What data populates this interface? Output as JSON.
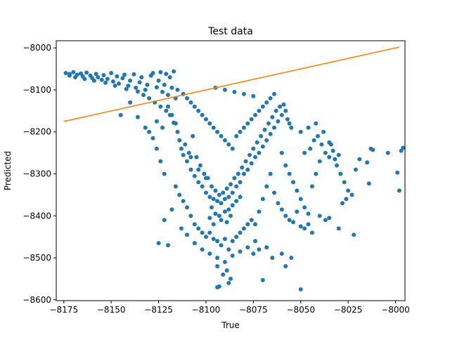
{
  "chart_data": {
    "type": "scatter",
    "title": "Test data",
    "xlabel": "True",
    "ylabel": "Predicted",
    "xlim": [
      -8179,
      -7995
    ],
    "ylim": [
      -8602,
      -7983
    ],
    "xticks": [
      -8175,
      -8150,
      -8125,
      -8100,
      -8075,
      -8050,
      -8025,
      -8000
    ],
    "yticks": [
      -8000,
      -8100,
      -8200,
      -8300,
      -8400,
      -8500,
      -8600
    ],
    "xtick_labels": [
      "−8175",
      "−8150",
      "−8125",
      "−8100",
      "−8075",
      "−8050",
      "−8025",
      "−8000"
    ],
    "ytick_labels": [
      "−8000",
      "−8100",
      "−8200",
      "−8300",
      "−8400",
      "−8500",
      "−8600"
    ],
    "grid": false,
    "series": [
      {
        "kind": "scatter",
        "color": "#1f77b4",
        "points": [
          [
            -8174,
            -8060
          ],
          [
            -8172,
            -8062
          ],
          [
            -8170,
            -8058
          ],
          [
            -8168,
            -8064
          ],
          [
            -8166,
            -8061
          ],
          [
            -8165,
            -8068
          ],
          [
            -8163,
            -8059
          ],
          [
            -8161,
            -8066
          ],
          [
            -8160,
            -8072
          ],
          [
            -8158,
            -8062
          ],
          [
            -8157,
            -8070
          ],
          [
            -8155,
            -8076
          ],
          [
            -8154,
            -8065
          ],
          [
            -8152,
            -8074
          ],
          [
            -8150,
            -8060
          ],
          [
            -8149,
            -8080
          ],
          [
            -8147,
            -8068
          ],
          [
            -8146,
            -8085
          ],
          [
            -8144,
            -8072
          ],
          [
            -8143,
            -8064
          ],
          [
            -8141,
            -8090
          ],
          [
            -8140,
            -8078
          ],
          [
            -8138,
            -8063
          ],
          [
            -8137,
            -8095
          ],
          [
            -8135,
            -8082
          ],
          [
            -8134,
            -8070
          ],
          [
            -8132,
            -8100
          ],
          [
            -8131,
            -8088
          ],
          [
            -8129,
            -8066
          ],
          [
            -8128,
            -8060
          ],
          [
            -8126,
            -8094
          ],
          [
            -8125,
            -8078
          ],
          [
            -8124,
            -8058
          ],
          [
            -8123,
            -8105
          ],
          [
            -8122,
            -8088
          ],
          [
            -8121,
            -8062
          ],
          [
            -8120,
            -8112
          ],
          [
            -8119,
            -8070
          ],
          [
            -8118,
            -8095
          ],
          [
            -8117,
            -8056
          ],
          [
            -8116,
            -8120
          ],
          [
            -8172,
            -8066
          ],
          [
            -8169,
            -8070
          ],
          [
            -8164,
            -8074
          ],
          [
            -8159,
            -8078
          ],
          [
            -8153,
            -8083
          ],
          [
            -8148,
            -8090
          ],
          [
            -8142,
            -8098
          ],
          [
            -8136,
            -8104
          ],
          [
            -8133,
            -8112
          ],
          [
            -8130,
            -8120
          ],
          [
            -8127,
            -8130
          ],
          [
            -8124,
            -8140
          ],
          [
            -8121,
            -8150
          ],
          [
            -8145,
            -8160
          ],
          [
            -8140,
            -8130
          ],
          [
            -8126,
            -8175
          ],
          [
            -8123,
            -8190
          ],
          [
            -8119,
            -8160
          ],
          [
            -8117,
            -8178
          ],
          [
            -8120,
            -8140
          ],
          [
            -8118,
            -8160
          ],
          [
            -8116,
            -8180
          ],
          [
            -8115,
            -8200
          ],
          [
            -8114,
            -8220
          ],
          [
            -8113,
            -8240
          ],
          [
            -8112,
            -8255
          ],
          [
            -8111,
            -8230
          ],
          [
            -8110,
            -8270
          ],
          [
            -8109,
            -8250
          ],
          [
            -8108,
            -8290
          ],
          [
            -8107,
            -8210
          ],
          [
            -8106,
            -8305
          ],
          [
            -8105,
            -8260
          ],
          [
            -8104,
            -8320
          ],
          [
            -8103,
            -8280
          ],
          [
            -8102,
            -8330
          ],
          [
            -8101,
            -8300
          ],
          [
            -8100,
            -8345
          ],
          [
            -8099,
            -8310
          ],
          [
            -8098,
            -8355
          ],
          [
            -8097,
            -8330
          ],
          [
            -8096,
            -8360
          ],
          [
            -8095,
            -8340
          ],
          [
            -8094,
            -8365
          ],
          [
            -8093,
            -8350
          ],
          [
            -8092,
            -8370
          ],
          [
            -8091,
            -8345
          ],
          [
            -8090,
            -8360
          ],
          [
            -8089,
            -8335
          ],
          [
            -8088,
            -8355
          ],
          [
            -8087,
            -8325
          ],
          [
            -8086,
            -8345
          ],
          [
            -8085,
            -8310
          ],
          [
            -8084,
            -8330
          ],
          [
            -8083,
            -8300
          ],
          [
            -8082,
            -8320
          ],
          [
            -8081,
            -8285
          ],
          [
            -8080,
            -8300
          ],
          [
            -8079,
            -8270
          ],
          [
            -8078,
            -8290
          ],
          [
            -8077,
            -8255
          ],
          [
            -8076,
            -8275
          ],
          [
            -8075,
            -8240
          ],
          [
            -8074,
            -8260
          ],
          [
            -8073,
            -8225
          ],
          [
            -8072,
            -8250
          ],
          [
            -8071,
            -8210
          ],
          [
            -8070,
            -8235
          ],
          [
            -8069,
            -8195
          ],
          [
            -8068,
            -8220
          ],
          [
            -8067,
            -8180
          ],
          [
            -8066,
            -8205
          ],
          [
            -8065,
            -8165
          ],
          [
            -8064,
            -8190
          ],
          [
            -8063,
            -8150
          ],
          [
            -8062,
            -8175
          ],
          [
            -8061,
            -8140
          ],
          [
            -8060,
            -8160
          ],
          [
            -8059,
            -8135
          ],
          [
            -8058,
            -8150
          ],
          [
            -8057,
            -8170
          ],
          [
            -8056,
            -8180
          ],
          [
            -8055,
            -8190
          ],
          [
            -8115,
            -8100
          ],
          [
            -8112,
            -8110
          ],
          [
            -8110,
            -8120
          ],
          [
            -8108,
            -8130
          ],
          [
            -8106,
            -8140
          ],
          [
            -8104,
            -8150
          ],
          [
            -8102,
            -8160
          ],
          [
            -8100,
            -8170
          ],
          [
            -8098,
            -8180
          ],
          [
            -8096,
            -8190
          ],
          [
            -8094,
            -8200
          ],
          [
            -8092,
            -8210
          ],
          [
            -8090,
            -8220
          ],
          [
            -8088,
            -8230
          ],
          [
            -8086,
            -8240
          ],
          [
            -8084,
            -8210
          ],
          [
            -8082,
            -8200
          ],
          [
            -8080,
            -8190
          ],
          [
            -8078,
            -8180
          ],
          [
            -8076,
            -8170
          ],
          [
            -8074,
            -8160
          ],
          [
            -8072,
            -8150
          ],
          [
            -8070,
            -8140
          ],
          [
            -8068,
            -8130
          ],
          [
            -8066,
            -8120
          ],
          [
            -8064,
            -8110
          ],
          [
            -8095,
            -8095
          ],
          [
            -8090,
            -8100
          ],
          [
            -8085,
            -8105
          ],
          [
            -8080,
            -8110
          ],
          [
            -8075,
            -8115
          ],
          [
            -8108,
            -8260
          ],
          [
            -8104,
            -8290
          ],
          [
            -8100,
            -8310
          ],
          [
            -8097,
            -8380
          ],
          [
            -8095,
            -8395
          ],
          [
            -8093,
            -8400
          ],
          [
            -8090,
            -8390
          ],
          [
            -8088,
            -8385
          ],
          [
            -8086,
            -8375
          ],
          [
            -8084,
            -8365
          ],
          [
            -8082,
            -8355
          ],
          [
            -8098,
            -8405
          ],
          [
            -8092,
            -8410
          ],
          [
            -8087,
            -8400
          ],
          [
            -8096,
            -8420
          ],
          [
            -8089,
            -8415
          ],
          [
            -8110,
            -8380
          ],
          [
            -8108,
            -8400
          ],
          [
            -8106,
            -8420
          ],
          [
            -8104,
            -8430
          ],
          [
            -8102,
            -8440
          ],
          [
            -8100,
            -8450
          ],
          [
            -8098,
            -8440
          ],
          [
            -8096,
            -8455
          ],
          [
            -8094,
            -8460
          ],
          [
            -8092,
            -8470
          ],
          [
            -8090,
            -8455
          ],
          [
            -8088,
            -8480
          ],
          [
            -8086,
            -8460
          ],
          [
            -8084,
            -8450
          ],
          [
            -8082,
            -8440
          ],
          [
            -8080,
            -8430
          ],
          [
            -8078,
            -8420
          ],
          [
            -8076,
            -8410
          ],
          [
            -8113,
            -8430
          ],
          [
            -8110,
            -8445
          ],
          [
            -8106,
            -8465
          ],
          [
            -8102,
            -8480
          ],
          [
            -8098,
            -8490
          ],
          [
            -8094,
            -8500
          ],
          [
            -8090,
            -8510
          ],
          [
            -8086,
            -8495
          ],
          [
            -8082,
            -8485
          ],
          [
            -8078,
            -8475
          ],
          [
            -8074,
            -8460
          ],
          [
            -8094,
            -8520
          ],
          [
            -8091,
            -8540
          ],
          [
            -8089,
            -8530
          ],
          [
            -8087,
            -8550
          ],
          [
            -8094,
            -8570
          ],
          [
            -8093,
            -8568
          ],
          [
            -8088,
            -8560
          ],
          [
            -8070,
            -8553
          ],
          [
            -8075,
            -8490
          ],
          [
            -8072,
            -8480
          ],
          [
            -8068,
            -8475
          ],
          [
            -8065,
            -8500
          ],
          [
            -8060,
            -8490
          ],
          [
            -8055,
            -8500
          ],
          [
            -8050,
            -8575
          ],
          [
            -8058,
            -8520
          ],
          [
            -8120,
            -8470
          ],
          [
            -8125,
            -8465
          ],
          [
            -8122,
            -8410
          ],
          [
            -8118,
            -8385
          ],
          [
            -8122,
            -8300
          ],
          [
            -8124,
            -8270
          ],
          [
            -8126,
            -8240
          ],
          [
            -8128,
            -8215
          ],
          [
            -8130,
            -8200
          ],
          [
            -8132,
            -8190
          ],
          [
            -8136,
            -8165
          ],
          [
            -8116,
            -8330
          ],
          [
            -8114,
            -8350
          ],
          [
            -8112,
            -8365
          ],
          [
            -8060,
            -8250
          ],
          [
            -8058,
            -8280
          ],
          [
            -8056,
            -8300
          ],
          [
            -8054,
            -8320
          ],
          [
            -8052,
            -8340
          ],
          [
            -8050,
            -8360
          ],
          [
            -8048,
            -8380
          ],
          [
            -8046,
            -8395
          ],
          [
            -8044,
            -8330
          ],
          [
            -8042,
            -8300
          ],
          [
            -8040,
            -8270
          ],
          [
            -8048,
            -8250
          ],
          [
            -8045,
            -8240
          ],
          [
            -8043,
            -8220
          ],
          [
            -8041,
            -8210
          ],
          [
            -8039,
            -8230
          ],
          [
            -8037,
            -8250
          ],
          [
            -8035,
            -8260
          ],
          [
            -8033,
            -8245
          ],
          [
            -8031,
            -8280
          ],
          [
            -8029,
            -8300
          ],
          [
            -8027,
            -8320
          ],
          [
            -8025,
            -8340
          ],
          [
            -8023,
            -8350
          ],
          [
            -8021,
            -8290
          ],
          [
            -8050,
            -8200
          ],
          [
            -8046,
            -8190
          ],
          [
            -8042,
            -8180
          ],
          [
            -8038,
            -8200
          ],
          [
            -8034,
            -8230
          ],
          [
            -8032,
            -8265
          ],
          [
            -8030,
            -8255
          ],
          [
            -8066,
            -8300
          ],
          [
            -8068,
            -8330
          ],
          [
            -8070,
            -8360
          ],
          [
            -8072,
            -8390
          ],
          [
            -8074,
            -8420
          ],
          [
            -8064,
            -8345
          ],
          [
            -8062,
            -8370
          ],
          [
            -8060,
            -8385
          ],
          [
            -8058,
            -8400
          ],
          [
            -8056,
            -8410
          ],
          [
            -8054,
            -8415
          ],
          [
            -8052,
            -8390
          ],
          [
            -8050,
            -8425
          ],
          [
            -8048,
            -8430
          ],
          [
            -8046,
            -8420
          ],
          [
            -8044,
            -8440
          ],
          [
            -8040,
            -8400
          ],
          [
            -8037,
            -8410
          ],
          [
            -8035,
            -8405
          ],
          [
            -8030,
            -8430
          ],
          [
            -8026,
            -8360
          ],
          [
            -8022,
            -8445
          ],
          [
            -8028,
            -8370
          ],
          [
            -8013,
            -8240
          ],
          [
            -8012,
            -8243
          ],
          [
            -8015,
            -8273
          ],
          [
            -8014,
            -8323
          ],
          [
            -7999,
            -8297
          ],
          [
            -7998,
            -8340
          ],
          [
            -7997,
            -8245
          ],
          [
            -7996,
            -8238
          ],
          [
            -8004,
            -8250
          ],
          [
            -8019,
            -8265
          ],
          [
            -8035,
            -8225
          ]
        ]
      },
      {
        "kind": "line",
        "color": "#ff7f0e",
        "points": [
          [
            -8175,
            -8175
          ],
          [
            -7998,
            -7998
          ]
        ]
      }
    ]
  }
}
